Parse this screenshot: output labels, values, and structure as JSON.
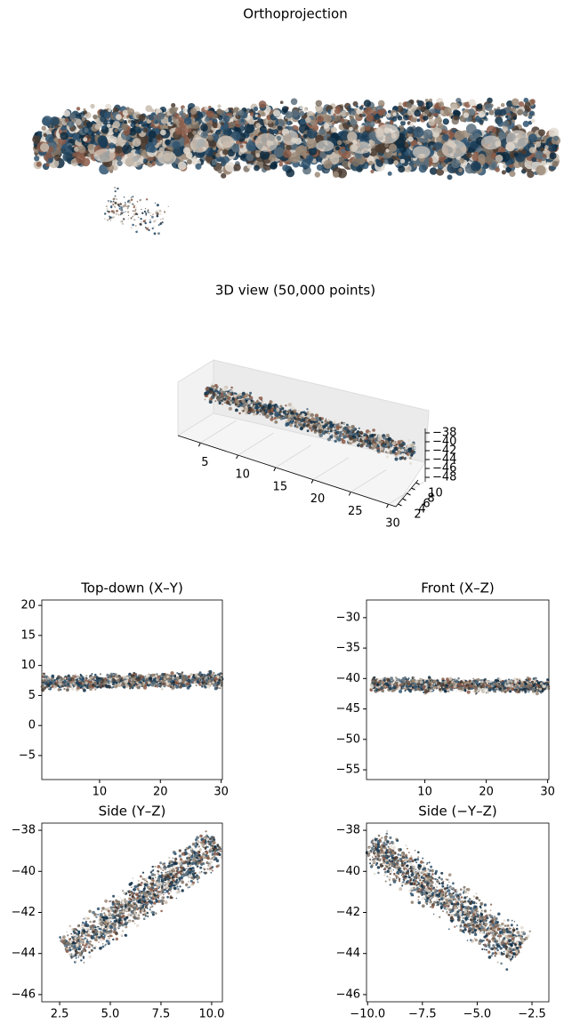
{
  "chart_data": [
    {
      "type": "image",
      "title": "Orthoprojection"
    },
    {
      "type": "scatter3d",
      "title": "3D view (50,000 points)",
      "xlim": [
        2,
        31
      ],
      "xticks": [
        5,
        10,
        15,
        20,
        25,
        30
      ],
      "ylim": [
        1,
        11
      ],
      "yticks": [
        2,
        4,
        6,
        8,
        10
      ],
      "zlim": [
        -49,
        -37
      ],
      "zticks": [
        {
          "value": -38,
          "label": "−38"
        },
        {
          "value": -40,
          "label": "−40"
        },
        {
          "value": -42,
          "label": "−42"
        },
        {
          "value": -44,
          "label": "−44"
        },
        {
          "value": -46,
          "label": "−46"
        },
        {
          "value": -48,
          "label": "−48"
        }
      ]
    },
    {
      "type": "scatter",
      "title": "Top-down (X–Y)",
      "xlim": [
        0.5,
        30.2
      ],
      "xticks": [
        10,
        20,
        30
      ],
      "ylim": [
        -9,
        20.9
      ],
      "yticks": [
        {
          "value": -5,
          "label": "−5"
        },
        0,
        5,
        10,
        15,
        20
      ]
    },
    {
      "type": "scatter",
      "title": "Front (X–Z)",
      "xlim": [
        0.5,
        30.2
      ],
      "xticks": [
        10,
        20,
        30
      ],
      "ylim": [
        -56.6,
        -27.1
      ],
      "yticks": [
        {
          "value": -30,
          "label": "−30"
        },
        {
          "value": -35,
          "label": "−35"
        },
        {
          "value": -40,
          "label": "−40"
        },
        {
          "value": -45,
          "label": "−45"
        },
        {
          "value": -50,
          "label": "−50"
        },
        {
          "value": -55,
          "label": "−55"
        }
      ]
    },
    {
      "type": "scatter",
      "title": "Side (Y–Z)",
      "xlim": [
        1.62,
        10.53
      ],
      "xticks": [
        2.5,
        {
          "value": 5,
          "label": "5.0"
        },
        7.5,
        {
          "value": 10,
          "label": "10.0"
        }
      ],
      "ylim": [
        -46.35,
        -37.65
      ],
      "yticks": [
        {
          "value": -38,
          "label": "−38"
        },
        {
          "value": -40,
          "label": "−40"
        },
        {
          "value": -42,
          "label": "−42"
        },
        {
          "value": -44,
          "label": "−44"
        },
        {
          "value": -46,
          "label": "−46"
        }
      ]
    },
    {
      "type": "scatter",
      "title": "Side (−Y–Z)",
      "xlim": [
        -10.05,
        -1.73
      ],
      "xticks": [
        {
          "value": -10,
          "label": "−10.0"
        },
        {
          "value": -7.5,
          "label": "−7.5"
        },
        {
          "value": -5,
          "label": "−5.0"
        },
        {
          "value": -2.5,
          "label": "−2.5"
        }
      ],
      "ylim": [
        -46.35,
        -37.65
      ],
      "yticks": [
        {
          "value": -38,
          "label": "−38"
        },
        {
          "value": -40,
          "label": "−40"
        },
        {
          "value": -42,
          "label": "−42"
        },
        {
          "value": -44,
          "label": "−44"
        },
        {
          "value": -46,
          "label": "−46"
        }
      ]
    }
  ]
}
